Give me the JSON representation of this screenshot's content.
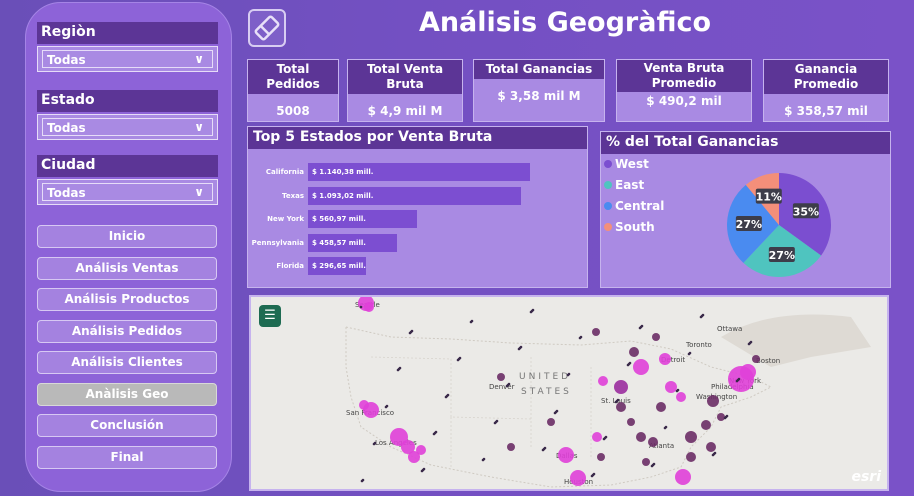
{
  "title": "Análisis Geogràfico",
  "filters": [
    {
      "label": "Regiòn",
      "value": "Todas"
    },
    {
      "label": "Estado",
      "value": "Todas"
    },
    {
      "label": "Ciudad",
      "value": "Todas"
    }
  ],
  "nav": [
    "Inicio",
    "Análisis Ventas",
    "Análisis Productos",
    "Análisis Pedidos",
    "Análisis Clientes",
    "Anàlisis Geo",
    "Conclusión",
    "Final"
  ],
  "nav_active": "Anàlisis Geo",
  "kpis": [
    {
      "label": "Total Pedidos",
      "value": "5008"
    },
    {
      "label": "Total Venta Bruta",
      "value": "$ 4,9 mil M"
    },
    {
      "label": "Total Ganancias",
      "value": "$ 3,58 mil M"
    },
    {
      "label": "Venta Bruta Promedio",
      "value": "$ 490,2 mil"
    },
    {
      "label": "Ganancia Promedio",
      "value": "$ 358,57 mil"
    }
  ],
  "colors": {
    "bar": "#7c4ed1",
    "header": "#5c3596",
    "west": "#7b4ed0",
    "east": "#4fc4bf",
    "central": "#4a8bf0",
    "south": "#f48f7a"
  },
  "chart_data": [
    {
      "type": "bar",
      "title": "Top 5 Estados por Venta Bruta",
      "categories": [
        "California",
        "Texas",
        "New York",
        "Pennsylvania",
        "Florida"
      ],
      "values": [
        1140.38,
        1093.02,
        560.97,
        458.57,
        296.65
      ],
      "data_labels": [
        "$ 1.140,38 mill.",
        "$ 1.093,02 mill.",
        "$ 560,97 mill.",
        "$ 458,57 mill.",
        "$ 296,65 mill."
      ]
    },
    {
      "type": "pie",
      "title": "% del Total Ganancias",
      "categories": [
        "West",
        "East",
        "Central",
        "South"
      ],
      "values": [
        35,
        27,
        27,
        11
      ],
      "data_labels": [
        "35%",
        "27%",
        "27%",
        "11%"
      ],
      "legend": "left"
    }
  ],
  "map": {
    "labels": [
      "Seattle",
      "Ottawa",
      "Toronto",
      "Detroit",
      "Boston",
      "New York",
      "Philadelphia",
      "Washington",
      "Denver",
      "St. Louis",
      "San Francisco",
      "Los Angeles",
      "Atlanta",
      "Dallas",
      "Houston",
      "UNITED",
      "STATES"
    ],
    "attribution": "esri"
  }
}
